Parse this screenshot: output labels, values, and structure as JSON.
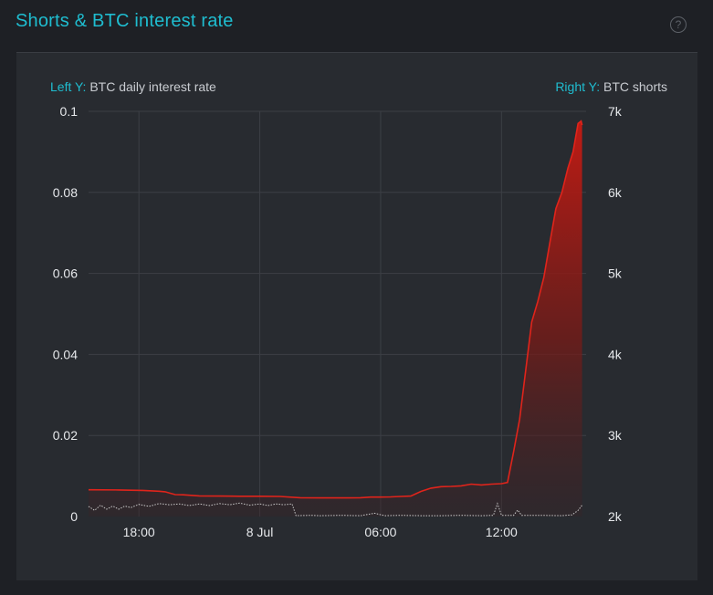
{
  "header": {
    "title": "Shorts & BTC interest rate",
    "help_icon": "question-circle-icon",
    "help_glyph": "?"
  },
  "colors": {
    "accent": "#1fbdd0",
    "shorts": "#e0241b",
    "rate": "#c8c8c8",
    "grid": "#3c3f45"
  },
  "legend": {
    "left_key": "Left Y:",
    "left_value": "BTC daily interest rate",
    "right_key": "Right Y:",
    "right_value": "BTC shorts"
  },
  "chart_data": {
    "type": "area",
    "x_unit": "hours since 7 Jul 12:00",
    "x_range": [
      3.5,
      28.2
    ],
    "x_ticks": [
      {
        "x": 6,
        "label": "18:00"
      },
      {
        "x": 12,
        "label": "8 Jul"
      },
      {
        "x": 18,
        "label": "06:00"
      },
      {
        "x": 24,
        "label": "12:00"
      }
    ],
    "y_left": {
      "label": "BTC daily interest rate",
      "range": [
        0,
        0.1
      ],
      "ticks": [
        0,
        0.02,
        0.04,
        0.06,
        0.08,
        0.1
      ],
      "tick_labels": [
        "0",
        "0.02",
        "0.04",
        "0.06",
        "0.08",
        "0.1"
      ]
    },
    "y_right": {
      "label": "BTC shorts",
      "range": [
        2000,
        7000
      ],
      "ticks": [
        2000,
        3000,
        4000,
        5000,
        6000,
        7000
      ],
      "tick_labels": [
        "2k",
        "3k",
        "4k",
        "5k",
        "6k",
        "7k"
      ]
    },
    "grid": true,
    "series": [
      {
        "name": "BTC shorts",
        "axis": "right",
        "style": "area",
        "points": [
          [
            3.5,
            2330
          ],
          [
            5,
            2328
          ],
          [
            6.2,
            2322
          ],
          [
            7,
            2312
          ],
          [
            7.3,
            2305
          ],
          [
            7.8,
            2270
          ],
          [
            8.2,
            2268
          ],
          [
            9,
            2255
          ],
          [
            10,
            2252
          ],
          [
            11,
            2250
          ],
          [
            12,
            2250
          ],
          [
            13,
            2248
          ],
          [
            14,
            2232
          ],
          [
            15,
            2230
          ],
          [
            16,
            2230
          ],
          [
            17,
            2232
          ],
          [
            17.5,
            2240
          ],
          [
            18,
            2240
          ],
          [
            18.5,
            2242
          ],
          [
            19,
            2248
          ],
          [
            19.5,
            2252
          ],
          [
            20,
            2310
          ],
          [
            20.5,
            2350
          ],
          [
            21,
            2368
          ],
          [
            21.5,
            2372
          ],
          [
            22,
            2378
          ],
          [
            22.5,
            2400
          ],
          [
            23,
            2390
          ],
          [
            23.5,
            2400
          ],
          [
            24,
            2405
          ],
          [
            24.3,
            2420
          ],
          [
            24.6,
            2800
          ],
          [
            24.9,
            3200
          ],
          [
            25.2,
            3800
          ],
          [
            25.5,
            4400
          ],
          [
            25.8,
            4650
          ],
          [
            26.1,
            4950
          ],
          [
            26.4,
            5380
          ],
          [
            26.7,
            5800
          ],
          [
            27,
            6000
          ],
          [
            27.3,
            6300
          ],
          [
            27.55,
            6500
          ],
          [
            27.8,
            6850
          ],
          [
            27.95,
            6880
          ],
          [
            28.0,
            6830
          ]
        ]
      },
      {
        "name": "BTC daily interest rate",
        "axis": "left",
        "style": "line",
        "points": [
          [
            3.5,
            0.0025
          ],
          [
            3.8,
            0.0015
          ],
          [
            4.1,
            0.0028
          ],
          [
            4.4,
            0.0018
          ],
          [
            4.7,
            0.0026
          ],
          [
            5,
            0.0018
          ],
          [
            5.3,
            0.0026
          ],
          [
            5.6,
            0.0022
          ],
          [
            6,
            0.003
          ],
          [
            6.5,
            0.0025
          ],
          [
            7,
            0.0032
          ],
          [
            7.5,
            0.0029
          ],
          [
            8,
            0.0031
          ],
          [
            8.5,
            0.0027
          ],
          [
            9,
            0.0031
          ],
          [
            9.5,
            0.0027
          ],
          [
            10,
            0.0032
          ],
          [
            10.5,
            0.0029
          ],
          [
            11,
            0.0033
          ],
          [
            11.5,
            0.0028
          ],
          [
            12,
            0.0031
          ],
          [
            12.4,
            0.0027
          ],
          [
            12.8,
            0.0031
          ],
          [
            13.2,
            0.0029
          ],
          [
            13.6,
            0.0031
          ],
          [
            13.8,
            0.0002
          ],
          [
            14.5,
            0.0003
          ],
          [
            15,
            0.0002
          ],
          [
            16,
            0.0003
          ],
          [
            17,
            0.0002
          ],
          [
            17.7,
            0.0008
          ],
          [
            18.2,
            0.0002
          ],
          [
            19,
            0.0003
          ],
          [
            20,
            0.0002
          ],
          [
            21,
            0.0002
          ],
          [
            22,
            0.0003
          ],
          [
            23,
            0.0002
          ],
          [
            23.6,
            0.0003
          ],
          [
            23.8,
            0.0032
          ],
          [
            24,
            0.0003
          ],
          [
            24.6,
            0.0003
          ],
          [
            24.8,
            0.0016
          ],
          [
            25,
            0.0003
          ],
          [
            26,
            0.0003
          ],
          [
            27,
            0.0002
          ],
          [
            27.5,
            0.0004
          ],
          [
            27.8,
            0.0015
          ],
          [
            28,
            0.0028
          ]
        ]
      }
    ]
  }
}
